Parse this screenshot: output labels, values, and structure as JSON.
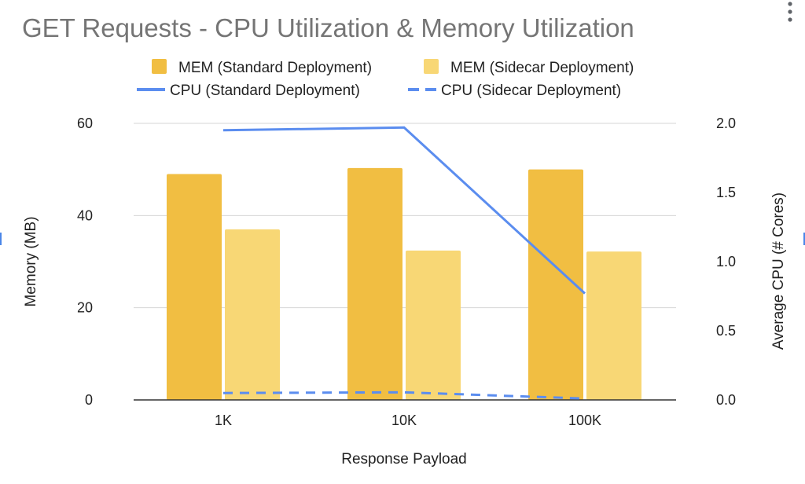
{
  "chart_data": {
    "type": "bar",
    "title": "GET Requests - CPU Utilization & Memory Utilization",
    "categories": [
      "1K",
      "10K",
      "100K"
    ],
    "xlabel": "Response Payload",
    "ylabel": "Memory (MB)",
    "y2label": "Average CPU (# Cores)",
    "ylim": [
      0,
      60
    ],
    "y2lim": [
      0,
      2.0
    ],
    "yticks": [
      "0",
      "20",
      "40",
      "60"
    ],
    "y2ticks": [
      "0.0",
      "0.5",
      "1.0",
      "1.5",
      "2.0"
    ],
    "grid": true,
    "legend_position": "top",
    "series": [
      {
        "name": "MEM (Standard Deployment)",
        "kind": "bar",
        "axis": "left",
        "color": "#f1be42",
        "values": [
          49.0,
          50.3,
          50.0
        ]
      },
      {
        "name": "MEM (Sidecar Deployment)",
        "kind": "bar",
        "axis": "left",
        "color": "#f8d775",
        "values": [
          37.0,
          32.4,
          32.2
        ]
      },
      {
        "name": "CPU (Standard Deployment)",
        "kind": "line",
        "style": "solid",
        "axis": "right",
        "color": "#5b8def",
        "values": [
          1.95,
          1.97,
          0.77
        ]
      },
      {
        "name": "CPU (Sidecar Deployment)",
        "kind": "line",
        "style": "dashed",
        "axis": "right",
        "color": "#5b8def",
        "values": [
          0.05,
          0.055,
          0.01
        ]
      }
    ]
  },
  "menu_icon": "more-vert-icon"
}
